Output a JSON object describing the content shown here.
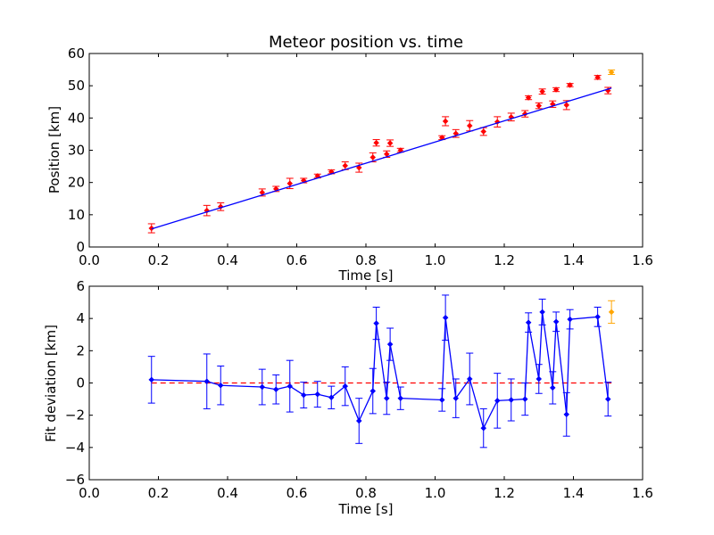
{
  "chart_data": [
    {
      "type": "scatter",
      "title": "Meteor position vs. time",
      "xlabel": "Time [s]",
      "ylabel": "Position [km]",
      "xlim": [
        0.0,
        1.6
      ],
      "ylim": [
        0,
        60
      ],
      "xticks": [
        "0.0",
        "0.2",
        "0.4",
        "0.6",
        "0.8",
        "1.0",
        "1.2",
        "1.4",
        "1.6"
      ],
      "yticks": [
        "0",
        "10",
        "20",
        "30",
        "40",
        "50",
        "60"
      ],
      "grid": false,
      "colors": {
        "points": "#ff0000",
        "errorbars": "#ff0000",
        "fit": "#0000ff",
        "outlier": "#ffa500"
      },
      "series": [
        {
          "kind": "points-with-error",
          "x": [
            0.18,
            0.34,
            0.38,
            0.5,
            0.54,
            0.58,
            0.62,
            0.66,
            0.7,
            0.74,
            0.78,
            0.82,
            0.83,
            0.86,
            0.87,
            0.9,
            1.02,
            1.03,
            1.06,
            1.1,
            1.14,
            1.18,
            1.22,
            1.26,
            1.27,
            1.3,
            1.31,
            1.34,
            1.35,
            1.38,
            1.39,
            1.47,
            1.5
          ],
          "y": [
            5.8,
            11.3,
            12.5,
            16.9,
            18.0,
            19.7,
            20.6,
            22.0,
            23.3,
            25.2,
            24.6,
            27.8,
            32.3,
            28.8,
            32.2,
            30.0,
            33.9,
            39.0,
            35.2,
            37.6,
            35.8,
            38.8,
            40.3,
            41.3,
            46.3,
            43.8,
            48.2,
            44.3,
            48.8,
            44.0,
            50.2,
            52.6,
            48.5
          ],
          "yerr": [
            1.4,
            1.6,
            1.2,
            1.1,
            0.8,
            1.6,
            0.7,
            0.6,
            0.6,
            1.2,
            1.4,
            1.4,
            1.0,
            1.0,
            1.0,
            0.6,
            0.6,
            1.4,
            1.2,
            1.6,
            1.2,
            1.6,
            1.2,
            1.0,
            0.6,
            0.9,
            0.8,
            1.0,
            0.6,
            1.4,
            0.5,
            0.6,
            1.0
          ]
        },
        {
          "kind": "outlier",
          "x": [
            1.51
          ],
          "y": [
            54.2
          ],
          "yerr": [
            0.7
          ]
        },
        {
          "kind": "fit-line",
          "x": [
            0.18,
            1.51
          ],
          "y": [
            5.6,
            49.3
          ]
        }
      ]
    },
    {
      "type": "line",
      "title": "",
      "xlabel": "Time [s]",
      "ylabel": "Fit deviation [km]",
      "xlim": [
        0.0,
        1.6
      ],
      "ylim": [
        -6,
        6
      ],
      "xticks": [
        "0.0",
        "0.2",
        "0.4",
        "0.6",
        "0.8",
        "1.0",
        "1.2",
        "1.4",
        "1.6"
      ],
      "yticks": [
        "−6",
        "−4",
        "−2",
        "0",
        "2",
        "4",
        "6"
      ],
      "grid": false,
      "colors": {
        "line": "#0000ff",
        "zero": "#ff0000",
        "outlier": "#ffa500"
      },
      "reference_line": {
        "y": 0,
        "style": "dashed"
      },
      "series": [
        {
          "kind": "line-with-error",
          "x": [
            0.18,
            0.34,
            0.38,
            0.5,
            0.54,
            0.58,
            0.62,
            0.66,
            0.7,
            0.74,
            0.78,
            0.82,
            0.83,
            0.86,
            0.87,
            0.9,
            1.02,
            1.03,
            1.06,
            1.1,
            1.14,
            1.18,
            1.22,
            1.26,
            1.27,
            1.3,
            1.31,
            1.34,
            1.35,
            1.38,
            1.39,
            1.47,
            1.5
          ],
          "y": [
            0.2,
            0.1,
            -0.15,
            -0.25,
            -0.4,
            -0.2,
            -0.75,
            -0.7,
            -0.9,
            -0.2,
            -2.35,
            -0.5,
            3.7,
            -0.95,
            2.4,
            -0.95,
            -1.05,
            4.05,
            -0.95,
            0.25,
            -2.8,
            -1.1,
            -1.05,
            -1.0,
            3.75,
            0.25,
            4.4,
            -0.3,
            3.8,
            -1.95,
            3.95,
            4.1,
            -1.0
          ],
          "yerr": [
            1.45,
            1.7,
            1.2,
            1.1,
            0.9,
            1.6,
            0.8,
            0.8,
            0.7,
            1.2,
            1.4,
            1.4,
            1.0,
            1.0,
            1.0,
            0.7,
            0.7,
            1.4,
            1.2,
            1.6,
            1.2,
            1.7,
            1.3,
            1.0,
            0.6,
            0.9,
            0.8,
            1.0,
            0.6,
            1.35,
            0.6,
            0.6,
            1.05
          ]
        },
        {
          "kind": "outlier",
          "x": [
            1.51
          ],
          "y": [
            4.4
          ],
          "yerr": [
            0.7
          ]
        }
      ]
    }
  ]
}
